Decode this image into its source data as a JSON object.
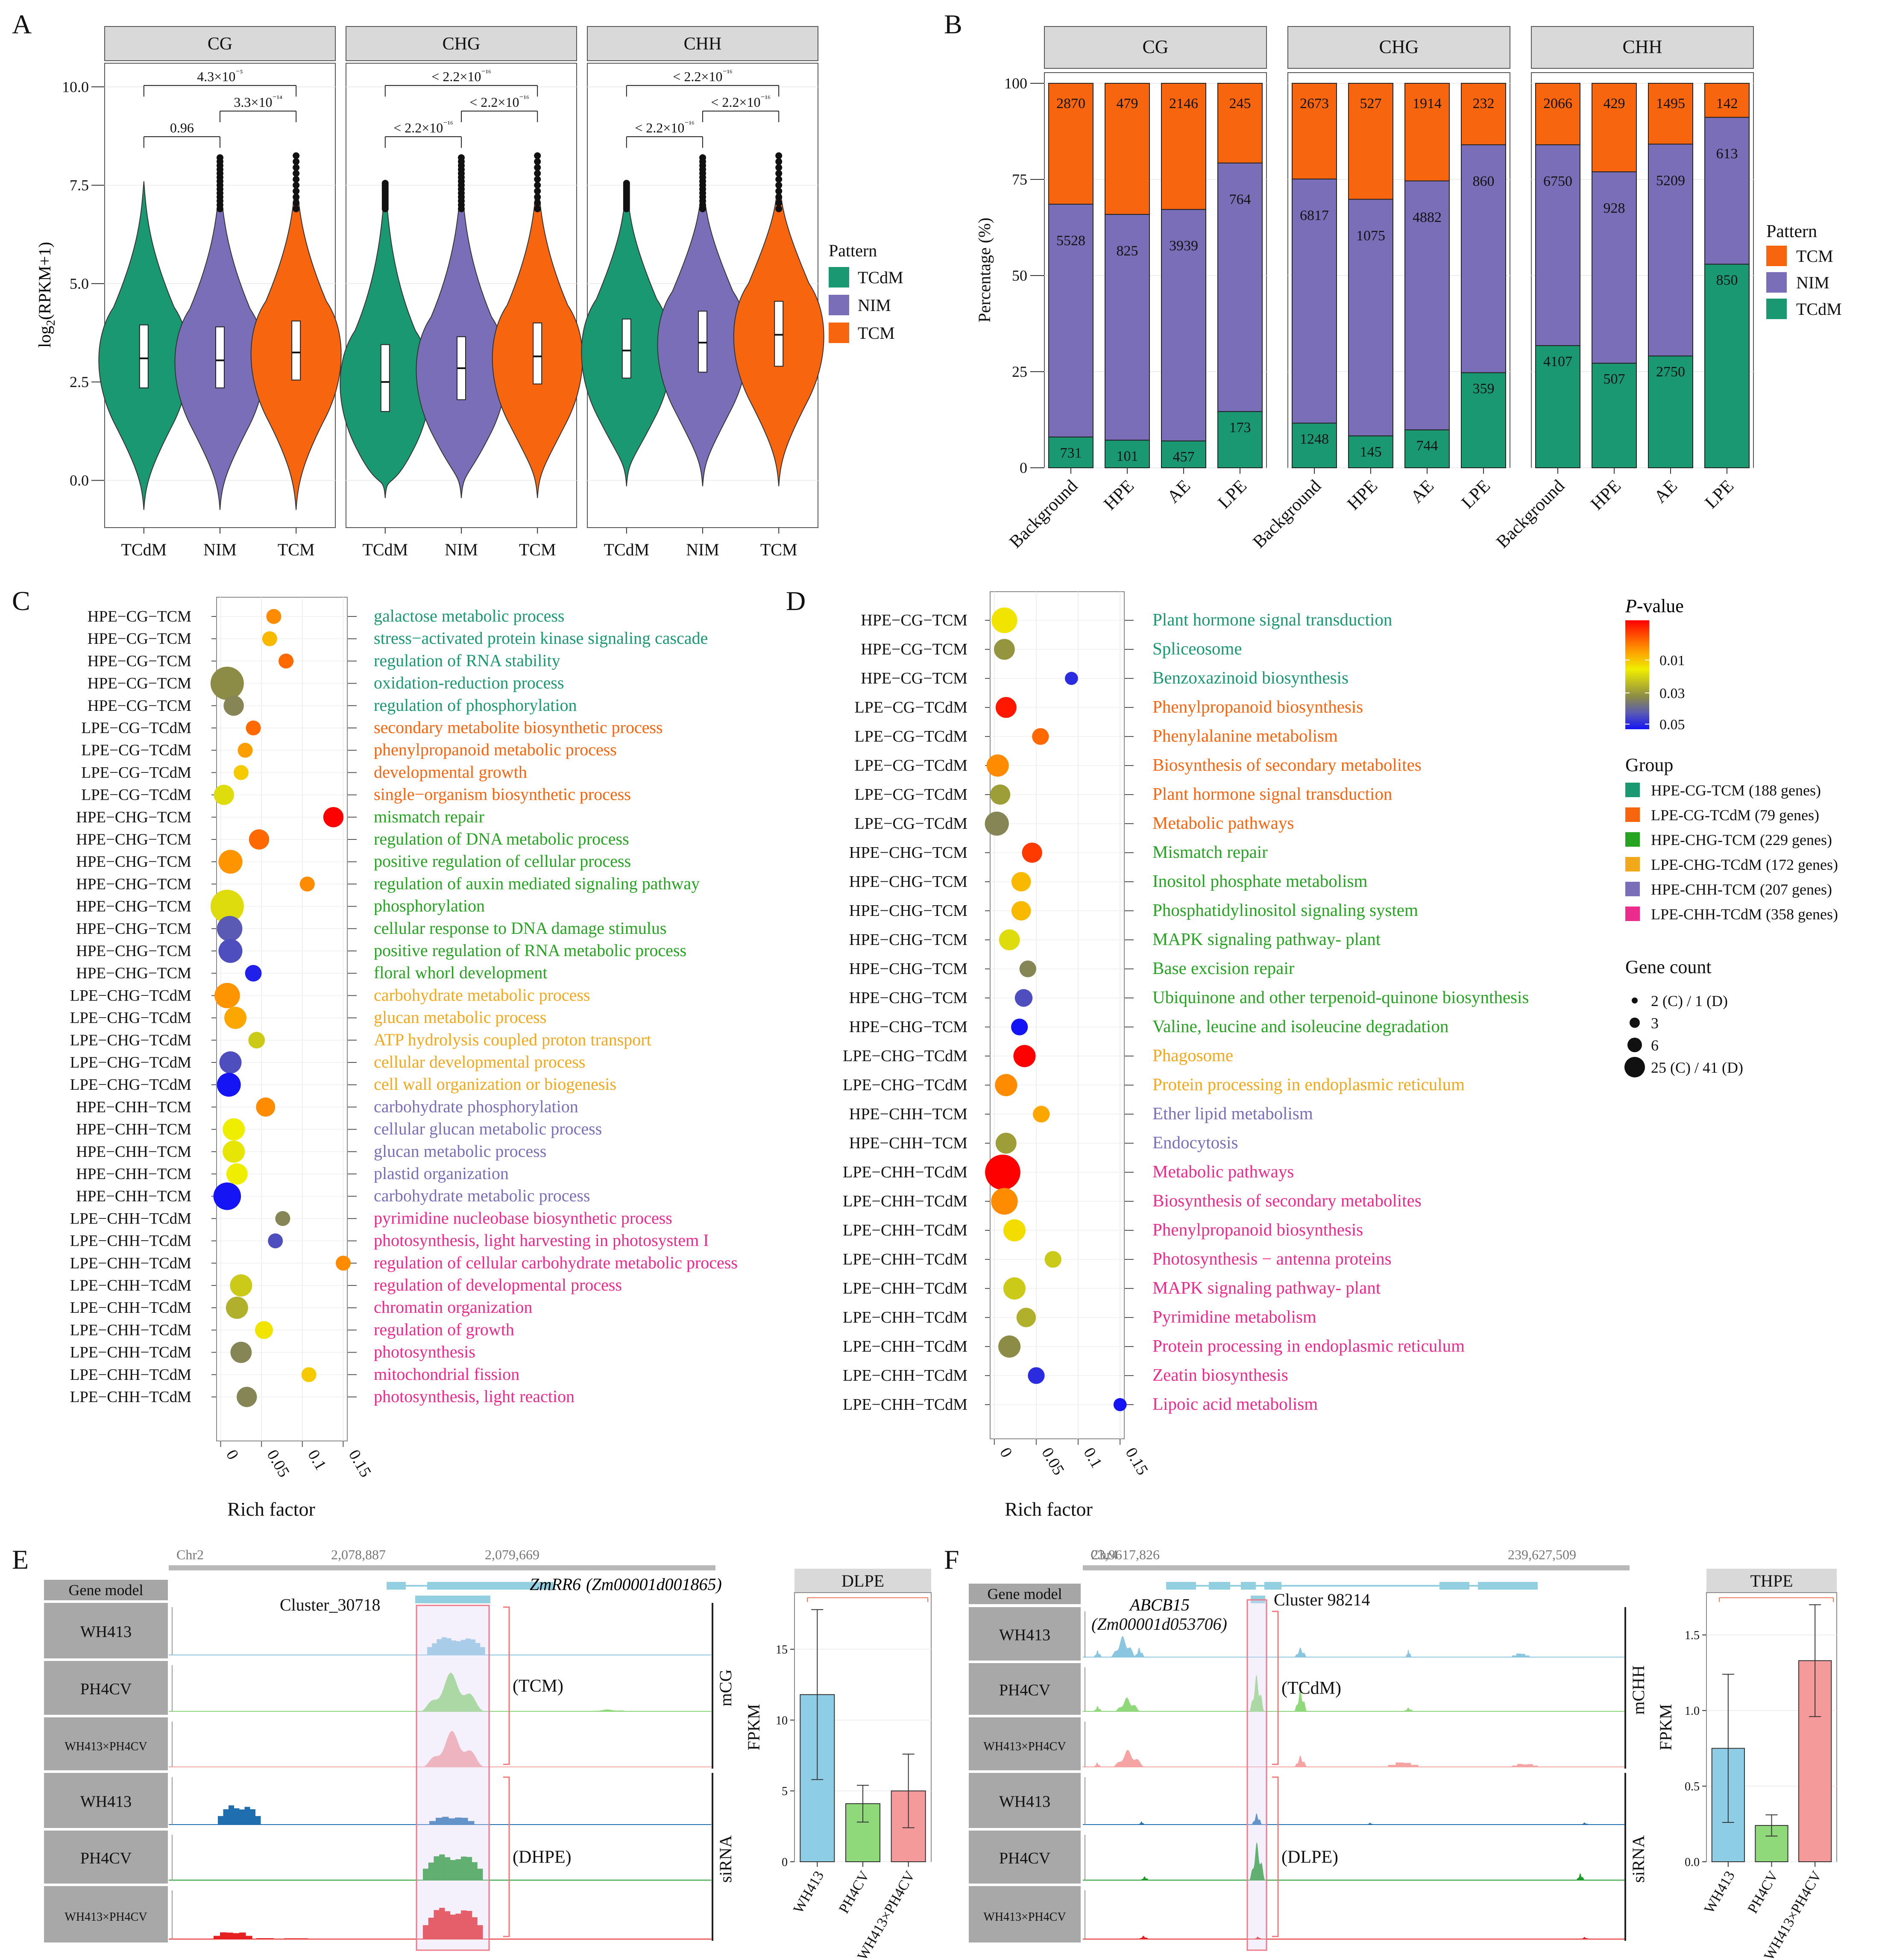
{
  "panel_labels": {
    "a": "A",
    "b": "B",
    "c": "C",
    "d": "D",
    "e": "E",
    "f": "F"
  },
  "colors": {
    "TCdM": "#1a9872",
    "NIM": "#7b6eb8",
    "TCM": "#f8650f",
    "strip": "#d9d9d9"
  },
  "chart_data": [
    {
      "panel": "A",
      "type": "violin",
      "facets": [
        "CG",
        "CHG",
        "CHH"
      ],
      "categories": [
        "TCdM",
        "NIM",
        "TCM"
      ],
      "ylabel": "log2(RPKM+1)",
      "yticks": [
        "0.0",
        "2.5",
        "5.0",
        "7.5",
        "10.0"
      ],
      "ylim": [
        -1.2,
        10.6
      ],
      "medians": [
        [
          3.1,
          3.05,
          3.25
        ],
        [
          2.5,
          2.85,
          3.15
        ],
        [
          3.3,
          3.5,
          3.7
        ]
      ],
      "quartiles": [
        [
          [
            2.35,
            3.95
          ],
          [
            2.35,
            3.9
          ],
          [
            2.55,
            4.05
          ]
        ],
        [
          [
            1.75,
            3.45
          ],
          [
            2.05,
            3.65
          ],
          [
            2.45,
            4.0
          ]
        ],
        [
          [
            2.6,
            4.1
          ],
          [
            2.75,
            4.3
          ],
          [
            2.9,
            4.55
          ]
        ]
      ],
      "pvalues": [
        {
          "low": "0.96",
          "mid": "3.3×10⁻¹⁴",
          "top": "4.3×10⁻⁵"
        },
        {
          "low": "< 2.2×10⁻¹⁶",
          "mid": "< 2.2×10⁻¹⁶",
          "top": "< 2.2×10⁻¹⁶"
        },
        {
          "low": "< 2.2×10⁻¹⁶",
          "mid": "< 2.2×10⁻¹⁶",
          "top": "< 2.2×10⁻¹⁶"
        }
      ],
      "legend_title": "Pattern",
      "legend": [
        "TCdM",
        "NIM",
        "TCM"
      ]
    },
    {
      "panel": "B",
      "type": "bar",
      "stacked": true,
      "facets": [
        "CG",
        "CHG",
        "CHH"
      ],
      "categories": [
        "Background",
        "HPE",
        "AE",
        "LPE"
      ],
      "ylabel": "Percentage (%)",
      "yticks": [
        "0",
        "25",
        "50",
        "75",
        "100"
      ],
      "ylim": [
        0,
        100
      ],
      "counts": [
        {
          "TCdM": [
            731,
            101,
            457,
            173
          ],
          "NIM": [
            5528,
            825,
            3939,
            764
          ],
          "TCM": [
            2870,
            479,
            2146,
            245
          ]
        },
        {
          "TCdM": [
            1248,
            145,
            744,
            359
          ],
          "NIM": [
            6817,
            1075,
            4882,
            860
          ],
          "TCM": [
            2673,
            527,
            1914,
            232
          ]
        },
        {
          "TCdM": [
            4107,
            507,
            2750,
            850
          ],
          "NIM": [
            6750,
            928,
            5209,
            613
          ],
          "TCM": [
            2066,
            429,
            1495,
            142
          ]
        }
      ],
      "legend_title": "Pattern",
      "legend": [
        "TCM",
        "NIM",
        "TCdM"
      ]
    },
    {
      "panel": "C",
      "type": "scatter",
      "xlabel": "Rich factor",
      "xticks": [
        "0",
        "0.05",
        "0.1",
        "0.15"
      ],
      "xlim": [
        -0.005,
        0.155
      ],
      "rows": [
        {
          "group": "HPE−CG−TCM",
          "term": "galactose metabolic process",
          "rf": 0.065,
          "genes": 2,
          "p": 0.015
        },
        {
          "group": "HPE−CG−TCM",
          "term": "stress−activated protein kinase signaling cascade",
          "rf": 0.06,
          "genes": 2,
          "p": 0.02
        },
        {
          "group": "HPE−CG−TCM",
          "term": "regulation of RNA stability",
          "rf": 0.08,
          "genes": 2,
          "p": 0.012
        },
        {
          "group": "HPE−CG−TCM",
          "term": "oxidation-reduction process",
          "rf": 0.008,
          "genes": 25,
          "p": 0.037
        },
        {
          "group": "HPE−CG−TCM",
          "term": "regulation of phosphorylation",
          "rf": 0.016,
          "genes": 6,
          "p": 0.038
        },
        {
          "group": "LPE−CG−TCdM",
          "term": "secondary metabolite biosynthetic process",
          "rf": 0.04,
          "genes": 2,
          "p": 0.012
        },
        {
          "group": "LPE−CG−TCdM",
          "term": "phenylpropanoid metabolic process",
          "rf": 0.03,
          "genes": 2,
          "p": 0.017
        },
        {
          "group": "LPE−CG−TCdM",
          "term": "developmental growth",
          "rf": 0.025,
          "genes": 2,
          "p": 0.022
        },
        {
          "group": "LPE−CG−TCdM",
          "term": "single−organism biosynthetic process",
          "rf": 0.004,
          "genes": 6,
          "p": 0.028
        },
        {
          "group": "HPE−CHG−TCM",
          "term": "mismatch repair",
          "rf": 0.138,
          "genes": 6,
          "p": 0.003
        },
        {
          "group": "HPE−CHG−TCM",
          "term": "regulation of DNA metabolic process",
          "rf": 0.047,
          "genes": 6,
          "p": 0.012
        },
        {
          "group": "HPE−CHG−TCM",
          "term": "positive regulation of cellular process",
          "rf": 0.012,
          "genes": 10,
          "p": 0.016
        },
        {
          "group": "HPE−CHG−TCM",
          "term": "regulation of auxin mediated signaling pathway",
          "rf": 0.106,
          "genes": 2,
          "p": 0.015
        },
        {
          "group": "HPE−CHG−TCM",
          "term": "phosphorylation",
          "rf": 0.008,
          "genes": 25,
          "p": 0.028
        },
        {
          "group": "HPE−CHG−TCM",
          "term": "cellular response to DNA damage stimulus",
          "rf": 0.011,
          "genes": 12,
          "p": 0.044
        },
        {
          "group": "HPE−CHG−TCM",
          "term": "positive regulation of RNA metabolic process",
          "rf": 0.012,
          "genes": 10,
          "p": 0.045
        },
        {
          "group": "HPE−CHG−TCM",
          "term": "floral whorl development",
          "rf": 0.04,
          "genes": 3,
          "p": 0.049
        },
        {
          "group": "LPE−CHG−TCdM",
          "term": "carbohydrate metabolic process",
          "rf": 0.008,
          "genes": 12,
          "p": 0.016
        },
        {
          "group": "LPE−CHG−TCdM",
          "term": "glucan metabolic process",
          "rf": 0.018,
          "genes": 8,
          "p": 0.018
        },
        {
          "group": "LPE−CHG−TCdM",
          "term": "ATP hydrolysis coupled proton transport",
          "rf": 0.044,
          "genes": 3,
          "p": 0.03
        },
        {
          "group": "LPE−CHG−TCdM",
          "term": "cellular developmental process",
          "rf": 0.012,
          "genes": 8,
          "p": 0.045
        },
        {
          "group": "LPE−CHG−TCdM",
          "term": "cell wall organization or biogenesis",
          "rf": 0.01,
          "genes": 10,
          "p": 0.05
        },
        {
          "group": "HPE−CHH−TCM",
          "term": "carbohydrate phosphorylation",
          "rf": 0.055,
          "genes": 5,
          "p": 0.015
        },
        {
          "group": "HPE−CHH−TCM",
          "term": "cellular glucan metabolic process",
          "rf": 0.016,
          "genes": 8,
          "p": 0.026
        },
        {
          "group": "HPE−CHH−TCM",
          "term": "glucan metabolic process",
          "rf": 0.016,
          "genes": 8,
          "p": 0.027
        },
        {
          "group": "HPE−CHH−TCM",
          "term": "plastid organization",
          "rf": 0.02,
          "genes": 7,
          "p": 0.026
        },
        {
          "group": "HPE−CHH−TCM",
          "term": "carbohydrate metabolic process",
          "rf": 0.008,
          "genes": 15,
          "p": 0.05
        },
        {
          "group": "LPE−CHH−TCdM",
          "term": "pyrimidine nucleobase biosynthetic process",
          "rf": 0.076,
          "genes": 2,
          "p": 0.038
        },
        {
          "group": "LPE−CHH−TCdM",
          "term": "photosynthesis, light harvesting in photosystem I",
          "rf": 0.067,
          "genes": 2,
          "p": 0.045
        },
        {
          "group": "LPE−CHH−TCdM",
          "term": "regulation of cellular carbohydrate metabolic process",
          "rf": 0.15,
          "genes": 2,
          "p": 0.015
        },
        {
          "group": "LPE−CHH−TCdM",
          "term": "regulation of developmental process",
          "rf": 0.025,
          "genes": 8,
          "p": 0.03
        },
        {
          "group": "LPE−CHH−TCdM",
          "term": "chromatin organization",
          "rf": 0.02,
          "genes": 8,
          "p": 0.033
        },
        {
          "group": "LPE−CHH−TCdM",
          "term": "regulation of growth",
          "rf": 0.053,
          "genes": 4,
          "p": 0.025
        },
        {
          "group": "LPE−CHH−TCdM",
          "term": "photosynthesis",
          "rf": 0.025,
          "genes": 7,
          "p": 0.038
        },
        {
          "group": "LPE−CHH−TCdM",
          "term": "mitochondrial fission",
          "rf": 0.108,
          "genes": 2,
          "p": 0.022
        },
        {
          "group": "LPE−CHH−TCdM",
          "term": "photosynthesis, light reaction",
          "rf": 0.032,
          "genes": 6,
          "p": 0.038
        }
      ]
    },
    {
      "panel": "D",
      "type": "scatter",
      "xlabel": "Rich factor",
      "xticks": [
        "0",
        "0.05",
        "0.1",
        "0.15"
      ],
      "xlim": [
        -0.005,
        0.155
      ],
      "rows": [
        {
          "group": "HPE−CG−TCM",
          "term": "Plant hormone signal transduction",
          "rf": 0.012,
          "genes": 18,
          "p": 0.025
        },
        {
          "group": "HPE−CG−TCM",
          "term": "Spliceosome",
          "rf": 0.012,
          "genes": 10,
          "p": 0.036
        },
        {
          "group": "HPE−CG−TCM",
          "term": "Benzoxazinoid biosynthesis",
          "rf": 0.092,
          "genes": 2,
          "p": 0.048
        },
        {
          "group": "LPE−CG−TCdM",
          "term": "Phenylpropanoid biosynthesis",
          "rf": 0.014,
          "genes": 10,
          "p": 0.005
        },
        {
          "group": "LPE−CG−TCdM",
          "term": "Phenylalanine metabolism",
          "rf": 0.055,
          "genes": 5,
          "p": 0.012
        },
        {
          "group": "LPE−CG−TCdM",
          "term": "Biosynthesis of secondary metabolites",
          "rf": 0.004,
          "genes": 12,
          "p": 0.015
        },
        {
          "group": "LPE−CG−TCdM",
          "term": "Plant hormone signal transduction",
          "rf": 0.007,
          "genes": 9,
          "p": 0.035
        },
        {
          "group": "LPE−CG−TCdM",
          "term": "Metabolic pathways",
          "rf": 0.003,
          "genes": 15,
          "p": 0.038
        },
        {
          "group": "HPE−CHG−TCM",
          "term": "Mismatch repair",
          "rf": 0.045,
          "genes": 9,
          "p": 0.008
        },
        {
          "group": "HPE−CHG−TCM",
          "term": "Inositol phosphate metabolism",
          "rf": 0.032,
          "genes": 8,
          "p": 0.02
        },
        {
          "group": "HPE−CHG−TCM",
          "term": "Phosphatidylinositol signaling system",
          "rf": 0.032,
          "genes": 8,
          "p": 0.02
        },
        {
          "group": "HPE−CHG−TCM",
          "term": "MAPK signaling pathway- plant",
          "rf": 0.018,
          "genes": 10,
          "p": 0.028
        },
        {
          "group": "HPE−CHG−TCM",
          "term": "Base excision repair",
          "rf": 0.04,
          "genes": 5,
          "p": 0.038
        },
        {
          "group": "HPE−CHG−TCM",
          "term": "Ubiquinone and other terpenoid-quinone biosynthesis",
          "rf": 0.035,
          "genes": 6,
          "p": 0.045
        },
        {
          "group": "HPE−CHG−TCM",
          "term": "Valine, leucine and isoleucine degradation",
          "rf": 0.03,
          "genes": 5,
          "p": 0.05
        },
        {
          "group": "LPE−CHG−TCdM",
          "term": "Phagosome",
          "rf": 0.036,
          "genes": 12,
          "p": 0.003
        },
        {
          "group": "LPE−CHG−TCdM",
          "term": "Protein processing in endoplasmic reticulum",
          "rf": 0.014,
          "genes": 12,
          "p": 0.015
        },
        {
          "group": "HPE−CHH−TCM",
          "term": "Ether lipid metabolism",
          "rf": 0.056,
          "genes": 5,
          "p": 0.018
        },
        {
          "group": "HPE−CHH−TCM",
          "term": "Endocytosis",
          "rf": 0.014,
          "genes": 10,
          "p": 0.035
        },
        {
          "group": "LPE−CHH−TCdM",
          "term": "Metabolic pathways",
          "rf": 0.01,
          "genes": 41,
          "p": 0.003
        },
        {
          "group": "LPE−CHH−TCdM",
          "term": "Biosynthesis of secondary metabolites",
          "rf": 0.012,
          "genes": 20,
          "p": 0.015
        },
        {
          "group": "LPE−CHH−TCdM",
          "term": "Phenylpropanoid biosynthesis",
          "rf": 0.024,
          "genes": 12,
          "p": 0.024
        },
        {
          "group": "LPE−CHH−TCdM",
          "term": "Photosynthesis − antenna proteins",
          "rf": 0.07,
          "genes": 5,
          "p": 0.03
        },
        {
          "group": "LPE−CHH−TCdM",
          "term": "MAPK signaling pathway- plant",
          "rf": 0.024,
          "genes": 12,
          "p": 0.03
        },
        {
          "group": "LPE−CHH−TCdM",
          "term": "Pyrimidine metabolism",
          "rf": 0.038,
          "genes": 8,
          "p": 0.033
        },
        {
          "group": "LPE−CHH−TCdM",
          "term": "Protein processing in endoplasmic reticulum",
          "rf": 0.018,
          "genes": 12,
          "p": 0.037
        },
        {
          "group": "LPE−CHH−TCdM",
          "term": "Zeatin biosynthesis",
          "rf": 0.05,
          "genes": 5,
          "p": 0.048
        },
        {
          "group": "LPE−CHH−TCdM",
          "term": "Lipoic acid metabolism",
          "rf": 0.15,
          "genes": 2,
          "p": 0.05
        }
      ],
      "legend": {
        "pvalue_title": "P-value",
        "pvalue_ticks": [
          "0.01",
          "0.03",
          "0.05"
        ],
        "group_title": "Group",
        "groups": [
          {
            "label": "HPE-CG-TCM (188 genes)",
            "color": "#1a9872"
          },
          {
            "label": "LPE-CG-TCdM (79 genes)",
            "color": "#f8650f"
          },
          {
            "label": "HPE-CHG-TCM (229 genes)",
            "color": "#27a322"
          },
          {
            "label": "LPE-CHG-TCdM (172 genes)",
            "color": "#f2a81b"
          },
          {
            "label": "HPE-CHH-TCM (207 genes)",
            "color": "#7b6eb8"
          },
          {
            "label": "LPE-CHH-TCdM (358 genes)",
            "color": "#ec2c8c"
          }
        ],
        "count_title": "Gene count",
        "counts": [
          "2 (C) / 1 (D)",
          "3",
          "6",
          "25 (C) / 41 (D)"
        ]
      }
    },
    {
      "panel": "E",
      "type": "bar",
      "title": "DLPE",
      "categories": [
        "WH413",
        "PH4CV",
        "WH413×PH4CV"
      ],
      "values": [
        11.8,
        4.1,
        5.0
      ],
      "errors": [
        6.0,
        1.3,
        2.6
      ],
      "ylabel": "FPKM",
      "yticks": [
        "0",
        "5",
        "10",
        "15"
      ],
      "ylim": [
        0,
        19
      ]
    },
    {
      "panel": "F",
      "type": "bar",
      "title": "THPE",
      "categories": [
        "WH413",
        "PH4CV",
        "WH413×PH4CV"
      ],
      "values": [
        0.75,
        0.24,
        1.33
      ],
      "errors": [
        0.49,
        0.07,
        0.37
      ],
      "ylabel": "FPKM",
      "yticks": [
        "0.0",
        "0.5",
        "1.0",
        "1.5"
      ],
      "ylim": [
        0,
        1.78
      ]
    }
  ],
  "tracks": {
    "E": {
      "chrom": "Chr2",
      "pos1": "2,078,887",
      "pos2": "2,079,669",
      "gene": "ZmRR6",
      "gene_id": "(Zm00001d001865)",
      "cluster": "Cluster_30718",
      "gene_model": "Gene model",
      "samples": [
        "WH413",
        "PH4CV",
        "WH413×PH4CV"
      ],
      "mlabel": "mCG",
      "slabel": "siRNA",
      "mnote": "(TCM)",
      "snote": "(DHPE)"
    },
    "F": {
      "chrom": "Chr4",
      "pos1": "23,9617,826",
      "pos2": "239,627,509",
      "gene": "ABCB15",
      "gene_id": "(Zm00001d053706)",
      "cluster": "Cluster  98214",
      "gene_model": "Gene model",
      "samples": [
        "WH413",
        "PH4CV",
        "WH413×PH4CV"
      ],
      "mlabel": "mCHH",
      "slabel": "siRNA",
      "mnote": "(TCdM)",
      "snote": "(DLPE)"
    }
  }
}
